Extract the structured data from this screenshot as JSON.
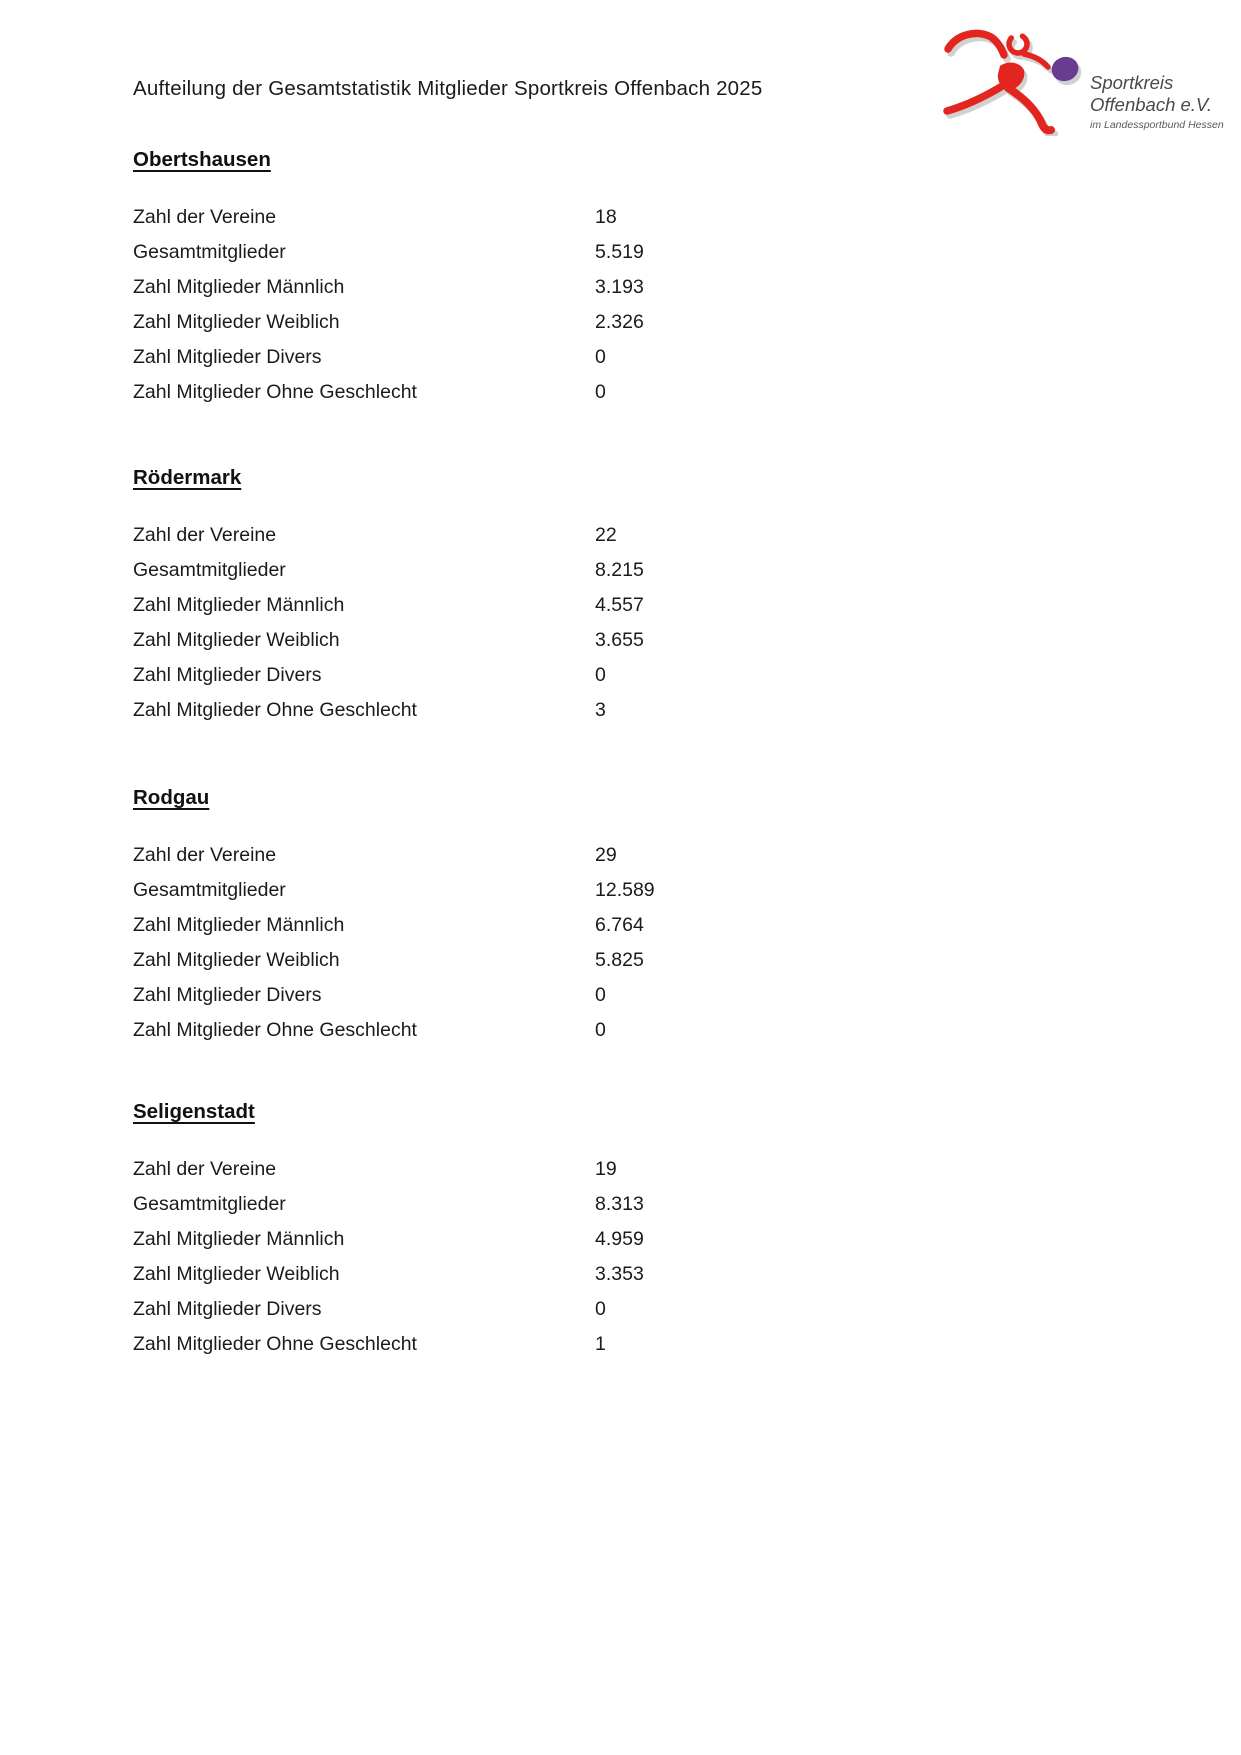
{
  "page": {
    "title": "Aufteilung der Gesamtstatistik Mitglieder Sportkreis Offenbach 2025"
  },
  "logo": {
    "org_line1": "Sportkreis",
    "org_line2": "Offenbach e.V.",
    "org_line3": "im Landessportbund Hessen",
    "figure_color": "#e2261f",
    "ball_color": "#6a3c91",
    "text_color": "#4a4a4a"
  },
  "row_labels": [
    "Zahl der Vereine",
    "Gesamtmitglieder",
    "Zahl Mitglieder Männlich",
    "Zahl Mitglieder Weiblich",
    "Zahl Mitglieder Divers",
    "Zahl Mitglieder Ohne Geschlecht"
  ],
  "sections": [
    {
      "name": "Obertshausen",
      "values": [
        "18",
        "5.519",
        "3.193",
        "2.326",
        "0",
        "0"
      ]
    },
    {
      "name": "Rödermark",
      "values": [
        "22",
        "8.215",
        "4.557",
        "3.655",
        "0",
        "3"
      ]
    },
    {
      "name": "Rodgau",
      "values": [
        "29",
        "12.589",
        "6.764",
        "5.825",
        "0",
        "0"
      ]
    },
    {
      "name": "Seligenstadt",
      "values": [
        "19",
        "8.313",
        "4.959",
        "3.353",
        "0",
        "1"
      ]
    }
  ]
}
